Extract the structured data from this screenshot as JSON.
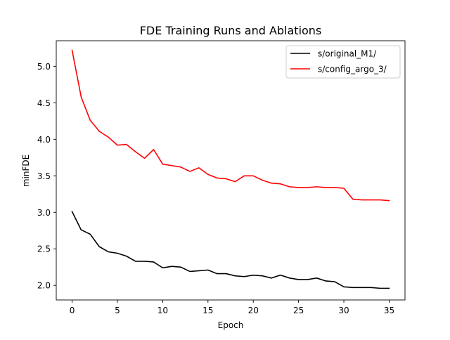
{
  "chart_data": {
    "type": "line",
    "title": "FDE Training Runs and Ablations",
    "xlabel": "Epoch",
    "ylabel": "minFDE",
    "xlim": [
      -1.75,
      36.75
    ],
    "ylim": [
      1.8,
      5.35
    ],
    "xticks": [
      0,
      5,
      10,
      15,
      20,
      25,
      30,
      35
    ],
    "xtick_labels": [
      "0",
      "5",
      "10",
      "15",
      "20",
      "25",
      "30",
      "35"
    ],
    "yticks": [
      2.0,
      2.5,
      3.0,
      3.5,
      4.0,
      4.5,
      5.0
    ],
    "ytick_labels": [
      "2.0",
      "2.5",
      "3.0",
      "3.5",
      "4.0",
      "4.5",
      "5.0"
    ],
    "grid": false,
    "legend_position": "top-right",
    "series": [
      {
        "name": "s/original_M1/",
        "color": "#000000",
        "x": [
          0,
          1,
          2,
          3,
          4,
          5,
          6,
          7,
          8,
          9,
          10,
          11,
          12,
          13,
          14,
          15,
          16,
          17,
          18,
          19,
          20,
          21,
          22,
          23,
          24,
          25,
          26,
          27,
          28,
          29,
          30,
          31,
          32,
          33,
          34,
          35
        ],
        "y": [
          3.01,
          2.76,
          2.7,
          2.53,
          2.46,
          2.44,
          2.4,
          2.33,
          2.33,
          2.32,
          2.24,
          2.26,
          2.25,
          2.19,
          2.2,
          2.21,
          2.16,
          2.16,
          2.13,
          2.12,
          2.14,
          2.13,
          2.1,
          2.14,
          2.1,
          2.08,
          2.08,
          2.1,
          2.06,
          2.05,
          1.98,
          1.97,
          1.97,
          1.97,
          1.96,
          1.96
        ]
      },
      {
        "name": "s/config_argo_3/",
        "color": "#ff0000",
        "x": [
          0,
          1,
          2,
          3,
          4,
          5,
          6,
          7,
          8,
          9,
          10,
          11,
          12,
          13,
          14,
          15,
          16,
          17,
          18,
          19,
          20,
          21,
          22,
          23,
          24,
          25,
          26,
          27,
          28,
          29,
          30,
          31,
          32,
          33,
          34,
          35
        ],
        "y": [
          5.22,
          4.58,
          4.26,
          4.11,
          4.03,
          3.92,
          3.93,
          3.83,
          3.74,
          3.86,
          3.66,
          3.64,
          3.62,
          3.56,
          3.61,
          3.52,
          3.47,
          3.46,
          3.42,
          3.5,
          3.5,
          3.44,
          3.4,
          3.39,
          3.35,
          3.34,
          3.34,
          3.35,
          3.34,
          3.34,
          3.33,
          3.18,
          3.17,
          3.17,
          3.17,
          3.16
        ]
      }
    ]
  }
}
